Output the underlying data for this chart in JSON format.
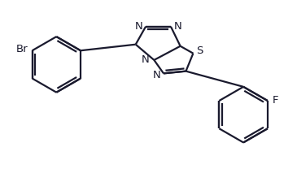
{
  "bg_color": "#ffffff",
  "bond_color": "#1a1a2e",
  "atom_color": "#1a1a2e",
  "line_width": 1.6,
  "font_size": 9.5,
  "figsize": [
    3.65,
    2.13
  ],
  "dpi": 100,
  "xlim": [
    -2.5,
    2.8
  ],
  "ylim": [
    -1.6,
    1.25
  ]
}
